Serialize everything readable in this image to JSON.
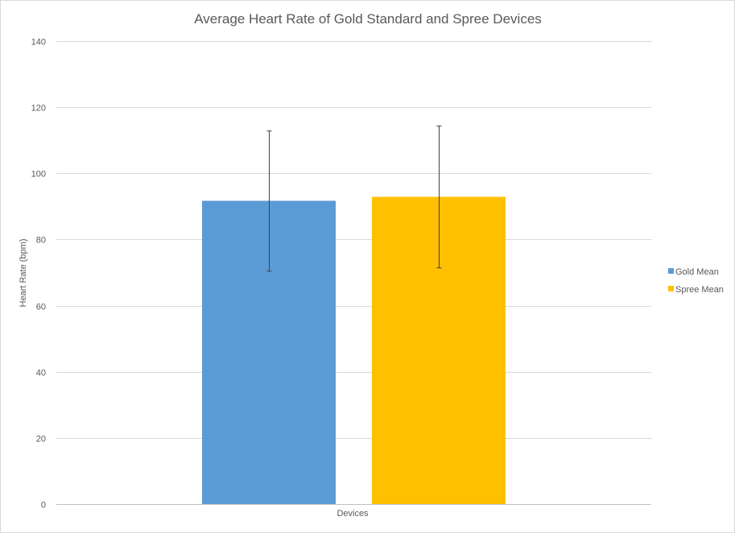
{
  "chart_data": {
    "type": "bar",
    "title": "Average Heart Rate of Gold Standard and Spree Devices",
    "xlabel": "Devices",
    "ylabel": "Heart Rate  (bpm)",
    "ylim": [
      0,
      140
    ],
    "yticks": [
      0,
      20,
      40,
      60,
      80,
      100,
      120,
      140
    ],
    "grid": true,
    "legend_position": "right",
    "categories": [
      "Devices"
    ],
    "series": [
      {
        "name": "Gold Mean",
        "color": "#5b9bd5",
        "values": [
          91.7
        ],
        "error": {
          "lower": [
            70.4
          ],
          "upper": [
            112.8
          ]
        }
      },
      {
        "name": "Spree Mean",
        "color": "#ffc000",
        "values": [
          92.9
        ],
        "error": {
          "lower": [
            71.4
          ],
          "upper": [
            114.3
          ]
        }
      }
    ]
  }
}
